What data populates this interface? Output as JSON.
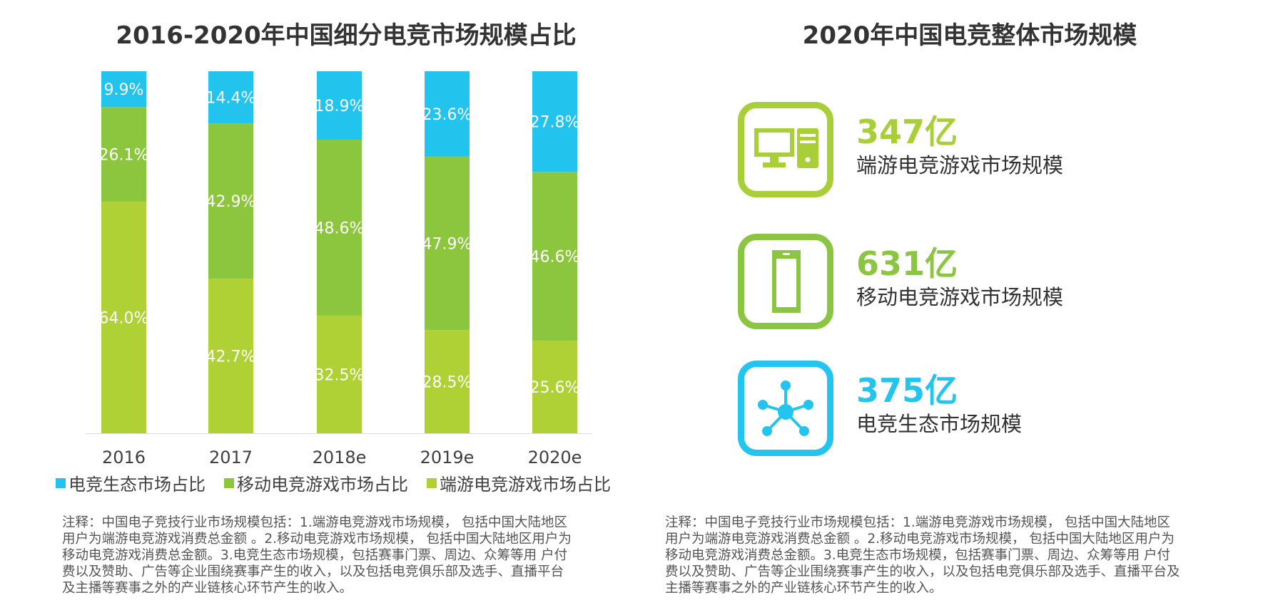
{
  "left": {
    "title": "2016-2020年中国细分电竞市场规模占比",
    "notes": [
      "注释：中国电子竞技行业市场规模包括：1.端游电竞游戏市场规模， 包括中国大陆地区",
      "用户为端游电竞游戏消费总金额 。2.移动电竞游戏市场规模， 包括中国大陆地区用户为",
      "移动电竞游戏消费总金额。3.电竞生态市场规模，包括赛事门票、周边、众筹等用 户付",
      "费以及赞助、广告等企业围绕赛事产生的收入，以及包括电竞俱乐部及选手、直播平台",
      "及主播等赛事之外的产业链核心环节产生的收入。"
    ]
  },
  "right": {
    "title": "2020年中国电竞整体市场规模",
    "kpis": [
      {
        "value": "347亿",
        "label": "端游电竞游戏市场规模",
        "icon": "desktop-computer-icon",
        "color": "#a9cf38"
      },
      {
        "value": "631亿",
        "label": "移动电竞游戏市场规模",
        "icon": "mobile-phone-icon",
        "color": "#8cc541"
      },
      {
        "value": "375亿",
        "label": "电竞生态市场规模",
        "icon": "network-hub-icon",
        "color": "#23c4ee"
      }
    ],
    "notes": [
      "注释：中国电子竞技行业市场规模包括：1.端游电竞游戏市场规模， 包括中国大陆地区",
      "用户为端游电竞游戏消费总金额 。2.移动电竞游戏市场规模， 包括中国大陆地区用户为",
      "移动电竞游戏消费总金额。3.电竞生态市场规模，包括赛事门票、周边、众筹等用 户付",
      "费以及赞助、广告等企业围绕赛事产生的收入，以及包括电竞俱乐部及选手、直播平台及",
      "主播等赛事之外的产业链核心环节产生的收入。"
    ]
  },
  "chart_data": {
    "type": "bar",
    "stacked": true,
    "percent": true,
    "title": "2016-2020年中国细分电竞市场规模占比",
    "categories": [
      "2016",
      "2017",
      "2018e",
      "2019e",
      "2020e"
    ],
    "ylim": [
      0,
      100
    ],
    "grid": false,
    "legend_position": "bottom",
    "series": [
      {
        "name": "端游电竞游戏市场占比",
        "color": "#afd136",
        "values": [
          64.0,
          42.7,
          32.5,
          28.5,
          25.6
        ],
        "labels": [
          "64.0%",
          "42.7%",
          "32.5%",
          "28.5%",
          "25.6%"
        ]
      },
      {
        "name": "移动电竞游戏市场占比",
        "color": "#8cc63f",
        "values": [
          26.1,
          42.9,
          48.6,
          47.9,
          46.6
        ],
        "labels": [
          "26.1%",
          "42.9%",
          "48.6%",
          "47.9%",
          "46.6%"
        ]
      },
      {
        "name": "电竞生态市场占比",
        "color": "#22c4ee",
        "values": [
          9.9,
          14.4,
          18.9,
          23.6,
          27.8
        ],
        "labels": [
          "9.9%",
          "14.4%",
          "18.9%",
          "23.6%",
          "27.8%"
        ]
      }
    ],
    "legend_order": [
      2,
      1,
      0
    ]
  }
}
